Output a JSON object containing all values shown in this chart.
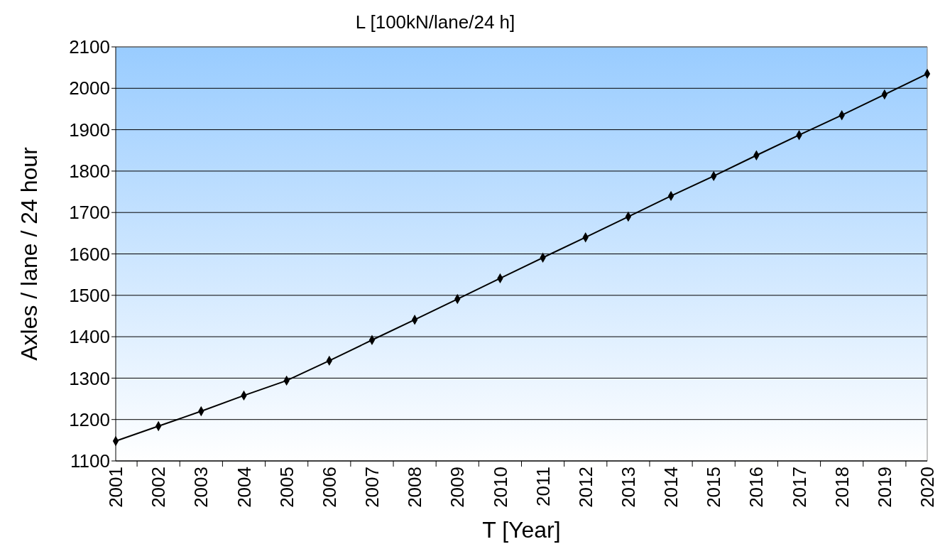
{
  "chart_data": {
    "type": "line",
    "title": "L [100kN/lane/24 h]",
    "xlabel": "T [Year]",
    "ylabel": "Axles / lane / 24 hour",
    "categories": [
      "2001",
      "2002",
      "2003",
      "2004",
      "2005",
      "2006",
      "2007",
      "2008",
      "2009",
      "2010",
      "2011",
      "2012",
      "2013",
      "2014",
      "2015",
      "2016",
      "2017",
      "2018",
      "2019",
      "2020"
    ],
    "series": [
      {
        "color": "#000000",
        "values": [
          1148,
          1184,
          1220,
          1258,
          1294,
          1342,
          1392,
          1441,
          1491,
          1541,
          1591,
          1640,
          1690,
          1740,
          1788,
          1838,
          1887,
          1935,
          1985,
          2035
        ]
      }
    ],
    "ylim": [
      1100,
      2100
    ],
    "yticks": [
      1100,
      1200,
      1300,
      1400,
      1500,
      1600,
      1700,
      1800,
      1900,
      2000,
      2100
    ],
    "grid": "y",
    "marker": "diamond",
    "line_style": "solid"
  }
}
